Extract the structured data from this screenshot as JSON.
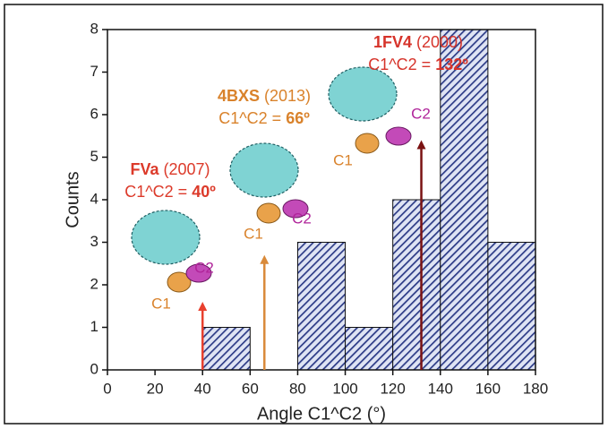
{
  "chart_data": {
    "type": "histogram",
    "x_label": "Angle C1^C2 (°)",
    "y_label": "Counts",
    "bins": [
      40,
      60,
      80,
      100,
      120,
      140,
      160,
      180
    ],
    "values": [
      1,
      0,
      3,
      1,
      4,
      8,
      3
    ],
    "color": "#2b3a86",
    "xlim": [
      0,
      180
    ],
    "ylim": [
      0,
      8
    ],
    "xticks": [
      0,
      20,
      40,
      60,
      80,
      100,
      120,
      140,
      160,
      180
    ],
    "yticks": [
      0,
      1,
      2,
      3,
      4,
      5,
      6,
      7,
      8
    ],
    "annotations": [
      {
        "name": "FVa",
        "year": "(2007)",
        "formula": "C1^C2 =",
        "angle_label": "40º",
        "c1": "C1",
        "c2": "C2",
        "x": 40,
        "arrow_to": 1.6,
        "color": "#e8402e",
        "text_color": "#dc3a2a"
      },
      {
        "name": "4BXS",
        "year": "(2013)",
        "formula": "C1^C2 =",
        "angle_label": "66º",
        "c1": "C1",
        "c2": "C2",
        "x": 66,
        "arrow_to": 2.7,
        "color": "#d98a3a",
        "text_color": "#d9822b"
      },
      {
        "name": "1FV4",
        "year": "(2000)",
        "formula": "C1^C2 =",
        "angle_label": "132º",
        "c1": "C1",
        "c2": "C2",
        "x": 132,
        "arrow_to": 5.4,
        "color": "#7a1212",
        "text_color": "#d6332a"
      }
    ]
  }
}
